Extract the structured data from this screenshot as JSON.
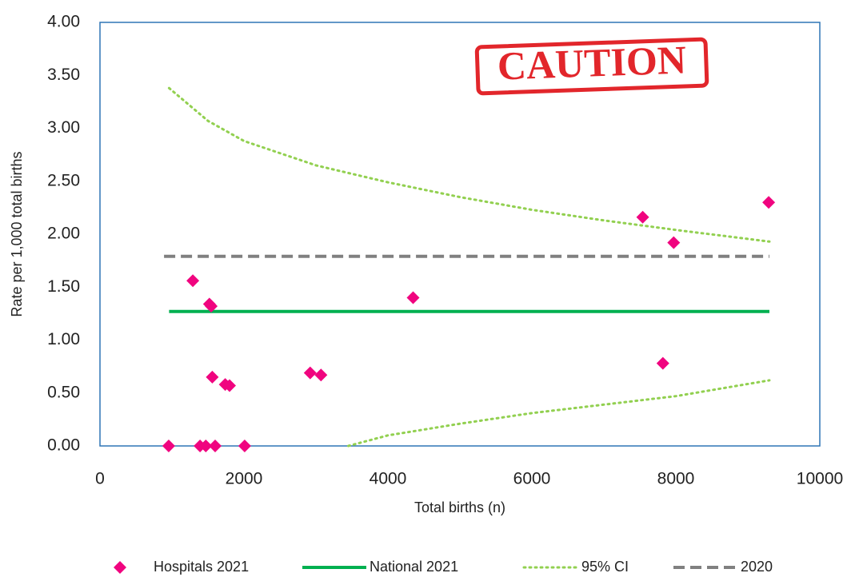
{
  "chart_data": {
    "type": "scatter",
    "annotation": "CAUTION",
    "x_label": "Total births (n)",
    "y_label": "Rate per 1,000 total births",
    "xlim": [
      0,
      10000
    ],
    "xticks": [
      0,
      2000,
      4000,
      6000,
      8000,
      10000
    ],
    "ylim": [
      0,
      4
    ],
    "yticks": [
      {
        "value": 0,
        "label": "0.00"
      },
      {
        "value": 0.5,
        "label": "0.50"
      },
      {
        "value": 1,
        "label": "1.00"
      },
      {
        "value": 1.5,
        "label": "1.50"
      },
      {
        "value": 2,
        "label": "2.00"
      },
      {
        "value": 2.5,
        "label": "2.50"
      },
      {
        "value": 3,
        "label": "3.00"
      },
      {
        "value": 3.5,
        "label": "3.50"
      },
      {
        "value": 4,
        "label": "4.00"
      }
    ],
    "legend": "bottom",
    "series": [
      {
        "name": "Hospitals 2021",
        "style": "markers",
        "color": "#f0047f",
        "x": [
          955,
          1290,
          1390,
          1470,
          1520,
          1545,
          1560,
          1600,
          1740,
          1800,
          2010,
          2920,
          3070,
          4350,
          7540,
          7820,
          7970,
          9290
        ],
        "values": [
          0,
          1.56,
          0,
          0,
          1.34,
          1.32,
          0.65,
          0,
          0.58,
          0.57,
          0,
          0.69,
          0.67,
          1.4,
          2.16,
          0.78,
          1.92,
          2.3
        ]
      },
      {
        "name": "National 2021",
        "style": "line",
        "dash": "solid",
        "color": "#00b050",
        "x": [
          960,
          9300
        ],
        "values": [
          1.27,
          1.27
        ]
      },
      {
        "name": "95% CI",
        "style": "line",
        "dash": "dotted",
        "color": "#92d050",
        "x": [
          960,
          1500,
          2000,
          3000,
          4000,
          5000,
          6000,
          7000,
          8000,
          9300,
          null,
          3450,
          4000,
          5000,
          6000,
          7000,
          8000,
          9300
        ],
        "values": [
          3.38,
          3.07,
          2.88,
          2.65,
          2.49,
          2.35,
          2.23,
          2.13,
          2.04,
          1.93,
          null,
          0,
          0.1,
          0.21,
          0.31,
          0.39,
          0.47,
          0.62
        ]
      },
      {
        "name": "2020",
        "style": "line",
        "dash": "dashed",
        "color": "#808080",
        "x": [
          890,
          9300
        ],
        "values": [
          1.79,
          1.79
        ]
      }
    ]
  }
}
